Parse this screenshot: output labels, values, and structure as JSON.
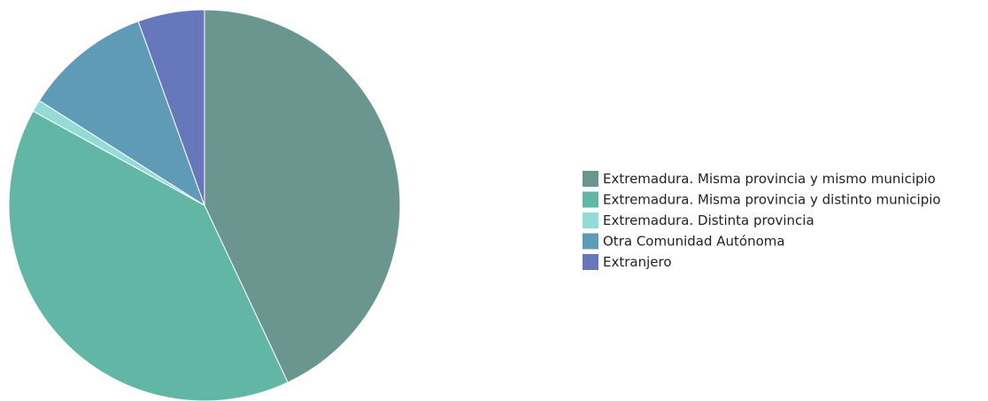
{
  "chart_data": {
    "type": "pie",
    "title": "",
    "legend_position": "right",
    "slices": [
      {
        "label": "Extremadura. Misma provincia y mismo municipio",
        "value": 43.0,
        "color": "#6b9690"
      },
      {
        "label": "Extremadura. Misma provincia y distinto municipio",
        "value": 40.0,
        "color": "#62b6a6"
      },
      {
        "label": "Extremadura. Distinta provincia",
        "value": 1.0,
        "color": "#93dbd6"
      },
      {
        "label": "Otra Comunidad Autónoma",
        "value": 10.5,
        "color": "#5f9bb6"
      },
      {
        "label": "Extranjero",
        "value": 5.5,
        "color": "#6777bb"
      }
    ]
  }
}
